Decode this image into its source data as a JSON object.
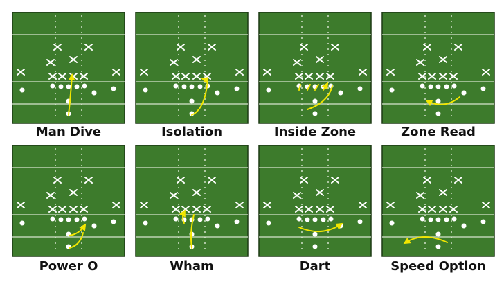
{
  "plays": [
    {
      "label": "Man Dive"
    },
    {
      "label": "Isolation"
    },
    {
      "label": "Inside Zone"
    },
    {
      "label": "Zone Read"
    },
    {
      "label": "Power O"
    },
    {
      "label": "Wham"
    },
    {
      "label": "Dart"
    },
    {
      "label": "Speed Option"
    }
  ]
}
